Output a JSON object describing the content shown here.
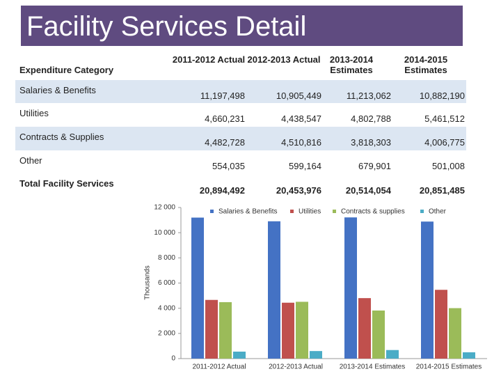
{
  "title": "Facility Services Detail",
  "table": {
    "header": [
      "Expenditure Category",
      "2011-2012 Actual",
      "2012-2013 Actual",
      "2013-2014 Estimates",
      "2014-2015 Estimates"
    ],
    "rows": [
      [
        "Salaries & Benefits",
        "11,197,498",
        "10,905,449",
        "11,213,062",
        "10,882,190"
      ],
      [
        "Utilities",
        "4,660,231",
        "4,438,547",
        "4,802,788",
        "5,461,512"
      ],
      [
        "Contracts & Supplies",
        "4,482,728",
        "4,510,816",
        "3,818,303",
        "4,006,775"
      ],
      [
        "Other",
        "554,035",
        "599,164",
        "679,901",
        "501,008"
      ],
      [
        "Total Facility Services",
        "20,894,492",
        "20,453,976",
        "20,514,054",
        "20,851,485"
      ]
    ]
  },
  "chart_data": {
    "type": "bar",
    "y_label": "Thousands",
    "categories": [
      "2011-2012 Actual",
      "2012-2013 Actual",
      "2013-2014 Estimates",
      "2014-2015 Estimates"
    ],
    "series": [
      {
        "name": "Salaries & Benefits",
        "color": "#4472c4",
        "values": [
          11197.498,
          10905.449,
          11213.062,
          10882.19
        ]
      },
      {
        "name": "Utilities",
        "color": "#c0504d",
        "values": [
          4660.231,
          4438.547,
          4802.788,
          5461.512
        ]
      },
      {
        "name": "Contracts & supplies",
        "color": "#9bbb59",
        "values": [
          4482.728,
          4510.816,
          3818.303,
          4006.775
        ]
      },
      {
        "name": "Other",
        "color": "#4bacc6",
        "values": [
          554.035,
          599.164,
          679.901,
          501.008
        ]
      }
    ],
    "ylim": [
      0,
      12000
    ],
    "yticks": [
      0,
      {
        "value": 2000,
        "label": "2 000"
      },
      {
        "value": 4000,
        "label": "4 000"
      },
      {
        "value": 6000,
        "label": "6 000"
      },
      {
        "value": 8000,
        "label": "8 000"
      },
      {
        "value": 10000,
        "label": "10 000"
      },
      {
        "value": 12000,
        "label": "12 000"
      }
    ],
    "legend": "top-right"
  }
}
